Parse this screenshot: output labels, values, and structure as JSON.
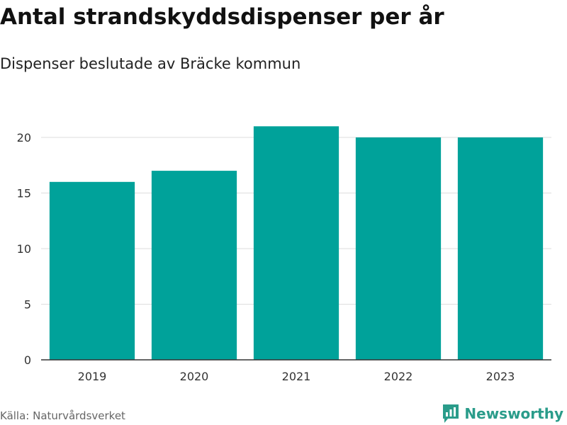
{
  "header": {
    "title": "Antal strandskyddsdispenser per år",
    "subtitle": "Dispenser beslutade av Bräcke kommun"
  },
  "footer": {
    "source": "Källa: Naturvårdsverket",
    "brand": "Newsworthy",
    "brand_icon": "newsworthy-logo-icon"
  },
  "colors": {
    "bar": "#00a29a",
    "grid": "#dddddd",
    "axis": "#333333",
    "brand": "#2a9c8a"
  },
  "chart_data": {
    "type": "bar",
    "categories": [
      "2019",
      "2020",
      "2021",
      "2022",
      "2023"
    ],
    "values": [
      16,
      17,
      21,
      20,
      20
    ],
    "title": "Antal strandskyddsdispenser per år",
    "subtitle": "Dispenser beslutade av Bräcke kommun",
    "xlabel": "",
    "ylabel": "",
    "ylim": [
      0,
      21
    ],
    "yticks": [
      0,
      5,
      10,
      15,
      20
    ],
    "grid": true,
    "legend": "none"
  }
}
